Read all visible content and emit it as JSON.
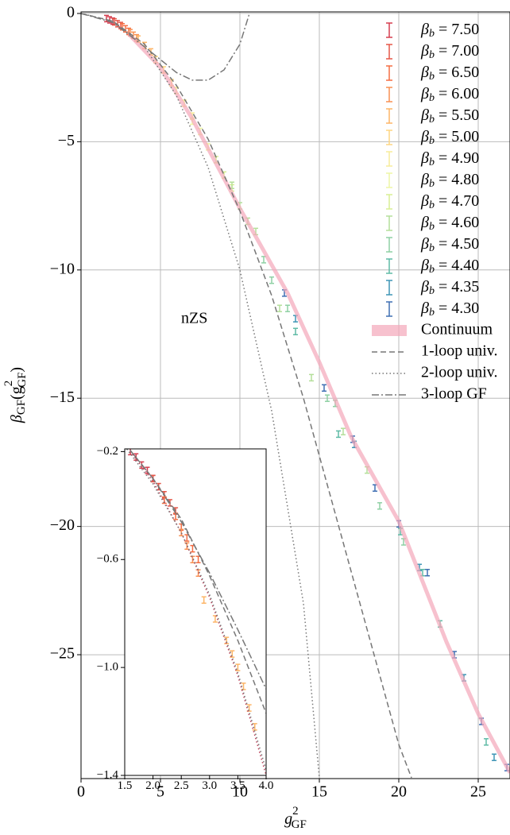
{
  "chart_data": [
    {
      "type": "scatter",
      "annotation": "nZS",
      "xlabel": {
        "base": "g",
        "sup": "2",
        "sub": "GF"
      },
      "ylabel": {
        "base": "β",
        "sub": "GF",
        "open": "(g",
        "sup": "2",
        "sub2": "GF",
        "close": ")"
      },
      "legend_prefix": {
        "symbol": "β",
        "sub": "b",
        "sep": "="
      },
      "xlim": [
        0,
        27
      ],
      "ylim": [
        -29.83,
        0.06
      ],
      "xticks": [
        0,
        5,
        10,
        15,
        20,
        25
      ],
      "yticks": [
        0,
        {
          "value": -5,
          "label": "−5"
        },
        {
          "value": -10,
          "label": "−10"
        },
        {
          "value": -15,
          "label": "−15"
        },
        {
          "value": -20,
          "label": "−20"
        },
        {
          "value": -25,
          "label": "−25"
        }
      ],
      "grid": true,
      "legend": "upper right",
      "series": [
        {
          "name": "7.50",
          "style": "points",
          "color": "#d53e4f",
          "x": [
            1.6,
            1.8,
            2.0
          ],
          "values": [
            -0.2,
            -0.25,
            -0.3
          ]
        },
        {
          "name": "7.00",
          "style": "points",
          "color": "#e55749",
          "x": [
            2.1,
            2.3,
            2.5
          ],
          "values": [
            -0.33,
            -0.4,
            -0.47
          ]
        },
        {
          "name": "6.50",
          "style": "points",
          "color": "#f46d43",
          "x": [
            2.6,
            2.8,
            3.0
          ],
          "values": [
            -0.52,
            -0.6,
            -0.7
          ]
        },
        {
          "name": "6.00",
          "style": "points",
          "color": "#f99153",
          "x": [
            3.1,
            3.3,
            3.5
          ],
          "values": [
            -0.75,
            -0.85,
            -0.95
          ]
        },
        {
          "name": "5.50",
          "style": "points",
          "color": "#fdb567",
          "x": [
            3.6,
            4.0,
            4.4
          ],
          "values": [
            -1.0,
            -1.25,
            -1.5
          ]
        },
        {
          "name": "5.00",
          "style": "points",
          "color": "#fed683",
          "x": [
            4.7,
            5.2,
            5.7
          ],
          "values": [
            -1.8,
            -2.2,
            -2.7
          ]
        },
        {
          "name": "4.90",
          "style": "points",
          "color": "#f7ec9a",
          "x": [
            6.0,
            6.5,
            7.0
          ],
          "values": [
            -3.0,
            -3.5,
            -4.0
          ]
        },
        {
          "name": "4.80",
          "style": "points",
          "color": "#eef6a6",
          "x": [
            7.0,
            7.5,
            8.0
          ],
          "values": [
            -4.2,
            -4.6,
            -5.2
          ]
        },
        {
          "name": "4.70",
          "style": "points",
          "color": "#d9ef94",
          "x": [
            8.5,
            9.0,
            9.5
          ],
          "values": [
            -5.7,
            -6.3,
            -6.8
          ]
        },
        {
          "name": "4.60",
          "style": "points",
          "color": "#b4df9a",
          "x": [
            9.5,
            10.0,
            10.5,
            11.0,
            12.5,
            14.5,
            16.5,
            18.0
          ],
          "values": [
            -6.7,
            -7.5,
            -8.1,
            -8.5,
            -11.5,
            -14.2,
            -16.3,
            -17.8
          ]
        },
        {
          "name": "4.50",
          "style": "points",
          "color": "#8fd0a4",
          "x": [
            11.5,
            12.0,
            13.0,
            15.5,
            16.0,
            18.8,
            20.3
          ],
          "values": [
            -9.6,
            -10.4,
            -11.5,
            -15.0,
            -15.2,
            -19.2,
            -20.6
          ]
        },
        {
          "name": "4.40",
          "style": "points",
          "color": "#5fbba6",
          "x": [
            13.5,
            16.2,
            20.1,
            21.5,
            22.6,
            25.5
          ],
          "values": [
            -12.4,
            -16.4,
            -20.2,
            -21.8,
            -23.8,
            -28.4
          ]
        },
        {
          "name": "4.35",
          "style": "points",
          "color": "#3f96b6",
          "x": [
            13.5,
            17.2,
            21.3,
            24.1,
            26.0
          ],
          "values": [
            -11.9,
            -16.8,
            -21.6,
            -25.9,
            -29.0
          ]
        },
        {
          "name": "4.30",
          "style": "points",
          "color": "#3f6fb3",
          "x": [
            12.8,
            15.3,
            17.1,
            18.5,
            20.0,
            21.8,
            23.5,
            25.2,
            26.8
          ],
          "values": [
            -10.9,
            -14.6,
            -16.6,
            -18.5,
            -19.9,
            -21.8,
            -25.0,
            -27.6,
            -29.4
          ]
        },
        {
          "name": "Continuum",
          "style": "band",
          "color": "#f4a7b9",
          "x": [
            3,
            5,
            7,
            10,
            13,
            15,
            17,
            20,
            23,
            25,
            27
          ],
          "values": [
            -0.8,
            -2.1,
            -4.1,
            -7.6,
            -10.9,
            -13.6,
            -16.5,
            -19.8,
            -24.5,
            -27.3,
            -29.6
          ]
        },
        {
          "name": "1-loop univ.",
          "style": "dashed",
          "color": "#777777",
          "x": [
            0,
            2,
            4,
            6,
            8,
            10,
            12,
            14,
            16,
            18,
            20,
            20.8
          ],
          "values": [
            0,
            -0.3,
            -1.2,
            -2.8,
            -4.9,
            -7.7,
            -11,
            -15,
            -19.5,
            -24,
            -28.5,
            -29.8
          ]
        },
        {
          "name": "2-loop univ.",
          "style": "dotted",
          "color": "#777777",
          "x": [
            0,
            2,
            4,
            6,
            8,
            10,
            12,
            14,
            15
          ],
          "values": [
            0,
            -0.3,
            -1.3,
            -3.2,
            -6,
            -10,
            -15.5,
            -23,
            -29.8
          ]
        },
        {
          "name": "3-loop GF",
          "style": "dashdot",
          "color": "#777777",
          "x": [
            0,
            2,
            4,
            6,
            7,
            8,
            9,
            10,
            10.6
          ],
          "values": [
            0,
            -0.35,
            -1.3,
            -2.3,
            -2.6,
            -2.6,
            -2.2,
            -1.2,
            0
          ]
        }
      ]
    },
    {
      "type": "scatter",
      "xlim": [
        1.5,
        4.0
      ],
      "ylim": [
        -1.4,
        -0.19
      ],
      "xticks": [
        1.5,
        {
          "value": 2,
          "label": "2.0"
        },
        2.5,
        {
          "value": 3,
          "label": "3.0"
        },
        3.5,
        {
          "value": 4,
          "label": "4.0"
        }
      ],
      "yticks": [
        {
          "value": -0.2,
          "label": "−0.2"
        },
        {
          "value": -0.6,
          "label": "−0.6"
        },
        {
          "value": -1.0,
          "label": "−1.0"
        },
        {
          "value": -1.4,
          "label": "−1.4"
        }
      ],
      "series": [
        {
          "style": "points",
          "color": "#d53e4f",
          "x": [
            1.6,
            1.7,
            1.8,
            1.9,
            2.0
          ],
          "values": [
            -0.2,
            -0.22,
            -0.25,
            -0.27,
            -0.3
          ]
        },
        {
          "style": "points",
          "color": "#e55749",
          "x": [
            2.0,
            2.1,
            2.2,
            2.3,
            2.4
          ],
          "values": [
            -0.3,
            -0.33,
            -0.36,
            -0.39,
            -0.42
          ]
        },
        {
          "style": "points",
          "color": "#f46d43",
          "x": [
            2.2,
            2.4,
            2.5,
            2.6,
            2.7,
            2.8
          ],
          "values": [
            -0.38,
            -0.44,
            -0.48,
            -0.52,
            -0.56,
            -0.6
          ]
        },
        {
          "style": "points",
          "color": "#f99153",
          "x": [
            2.5,
            2.6,
            2.7,
            2.8
          ],
          "values": [
            -0.5,
            -0.55,
            -0.6,
            -0.65
          ]
        },
        {
          "style": "points",
          "color": "#fdb567",
          "x": [
            2.9,
            3.1,
            3.3,
            3.4,
            3.5,
            3.6,
            3.7,
            3.8
          ],
          "values": [
            -0.75,
            -0.82,
            -0.9,
            -0.95,
            -1.0,
            -1.07,
            -1.15,
            -1.22
          ]
        },
        {
          "style": "dotted",
          "color": "#c0405a",
          "x": [
            1.6,
            2,
            2.5,
            3,
            3.5,
            4
          ],
          "values": [
            -0.2,
            -0.31,
            -0.5,
            -0.74,
            -1.03,
            -1.4
          ]
        },
        {
          "style": "dashed",
          "color": "#777777",
          "x": [
            1.5,
            2,
            2.5,
            3,
            3.5,
            4
          ],
          "values": [
            -0.17,
            -0.3,
            -0.45,
            -0.66,
            -0.9,
            -1.17
          ]
        },
        {
          "style": "dotted",
          "color": "#777777",
          "x": [
            1.5,
            2,
            2.5,
            3,
            3.5,
            4
          ],
          "values": [
            -0.18,
            -0.32,
            -0.5,
            -0.73,
            -1.02,
            -1.38
          ]
        },
        {
          "style": "dashdot",
          "color": "#777777",
          "x": [
            1.5,
            2,
            2.5,
            3,
            3.5,
            4
          ],
          "values": [
            -0.17,
            -0.3,
            -0.46,
            -0.65,
            -0.86,
            -1.08
          ]
        }
      ]
    }
  ]
}
